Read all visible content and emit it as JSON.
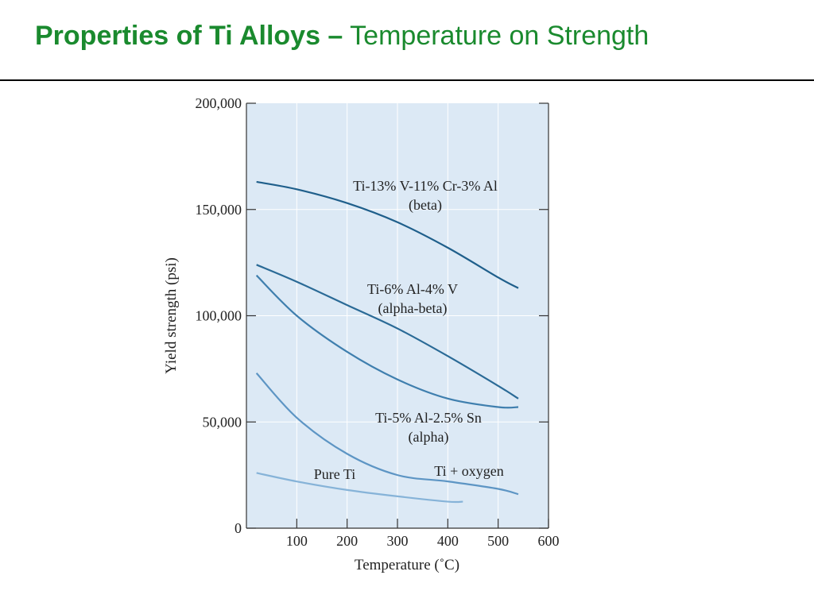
{
  "slide": {
    "title_bold": "Properties of Ti Alloys –",
    "title_rest": " Temperature on Strength",
    "title_color": "#1a8a2e"
  },
  "chart_data": {
    "type": "line",
    "xlabel": "Temperature (˚C)",
    "ylabel": "Yield strength (psi)",
    "xlim": [
      0,
      600
    ],
    "ylim": [
      0,
      200000
    ],
    "x_ticks": [
      "100",
      "200",
      "300",
      "400",
      "500",
      "600"
    ],
    "y_ticks": [
      "0",
      "50,000",
      "100,000",
      "150,000",
      "200,000"
    ],
    "x_tick_values": [
      100,
      200,
      300,
      400,
      500,
      600
    ],
    "y_tick_values": [
      0,
      50000,
      100000,
      150000,
      200000
    ],
    "plot_background": "#dce9f5",
    "grid": true,
    "series": [
      {
        "name": "Ti-13% V-11% Cr-3% Al (beta)",
        "label_lines": [
          "Ti-13% V-11% Cr-3% Al",
          "(beta)"
        ],
        "color": "#1f5f8b",
        "x": [
          20,
          100,
          200,
          300,
          400,
          500,
          540
        ],
        "y": [
          163000,
          159500,
          153000,
          144000,
          132000,
          118000,
          113000
        ]
      },
      {
        "name": "Ti-6% Al-4% V (alpha-beta)",
        "label_lines": [
          "Ti-6% Al-4% V",
          "(alpha-beta)"
        ],
        "color": "#2a6a96",
        "x": [
          20,
          100,
          200,
          300,
          400,
          500,
          540
        ],
        "y": [
          124000,
          116000,
          105000,
          94000,
          81000,
          67000,
          61000
        ]
      },
      {
        "name": "Ti-5% Al-2.5% Sn (alpha)",
        "label_lines": [
          "Ti-5% Al-2.5% Sn",
          "(alpha)"
        ],
        "color": "#3f7fae",
        "x": [
          20,
          100,
          200,
          300,
          400,
          500,
          540
        ],
        "y": [
          119000,
          100000,
          83000,
          70000,
          61000,
          57000,
          57000
        ]
      },
      {
        "name": "Ti + oxygen",
        "label_lines": [
          "Ti + oxygen"
        ],
        "color": "#5d95c4",
        "x": [
          20,
          100,
          200,
          300,
          400,
          500,
          540
        ],
        "y": [
          73000,
          52000,
          35000,
          25000,
          22000,
          18500,
          16000
        ]
      },
      {
        "name": "Pure Ti",
        "label_lines": [
          "Pure Ti"
        ],
        "color": "#86b3d8",
        "x": [
          20,
          100,
          200,
          300,
          400,
          430
        ],
        "y": [
          26000,
          22000,
          18000,
          15000,
          12500,
          12500
        ]
      }
    ]
  }
}
